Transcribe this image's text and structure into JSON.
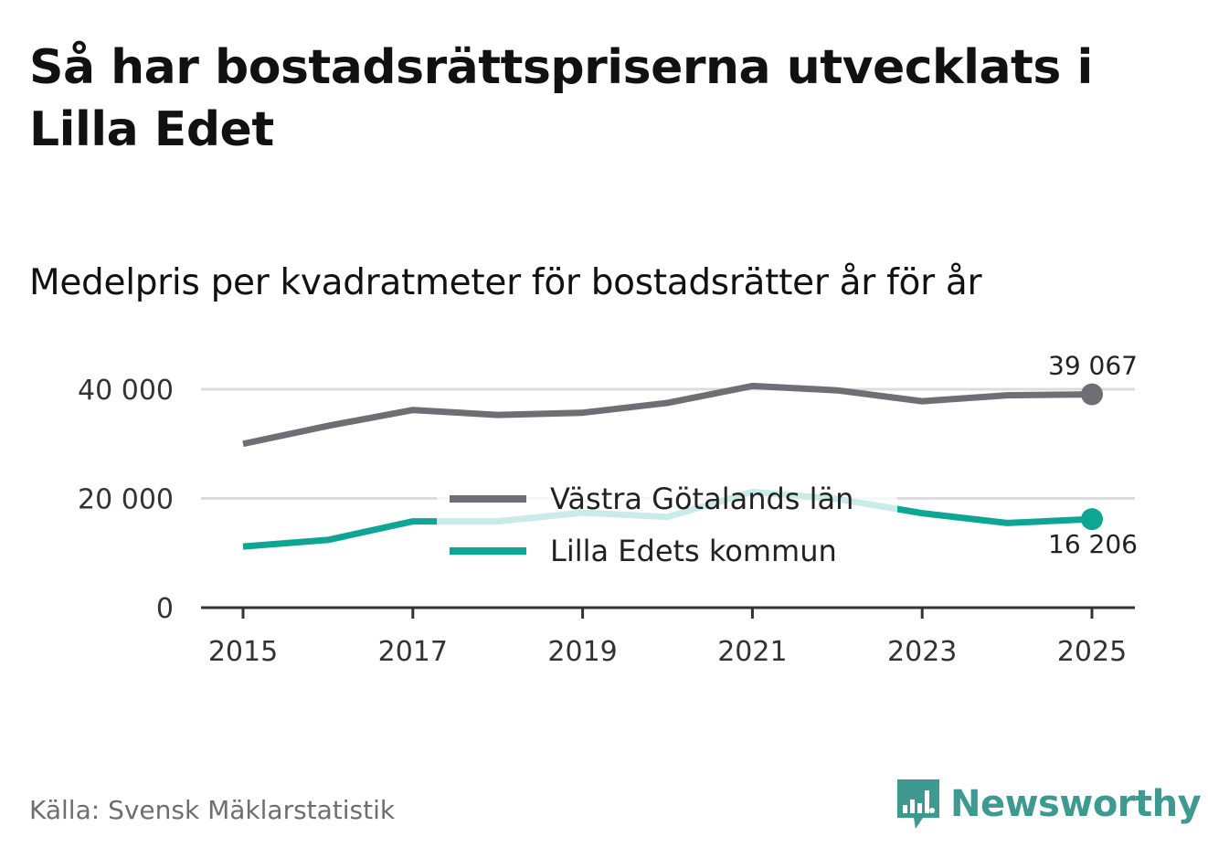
{
  "title": "Så har bostadsrättspriserna utvecklats i Lilla Edet",
  "subtitle": "Medelpris per kvadratmeter för bostadsrätter år för år",
  "source": "Källa: Svensk Mäklarstatistik",
  "brand": {
    "name": "Newsworthy",
    "icon": "newsworthy-logo-icon",
    "color": "#3e9a90"
  },
  "chart_data": {
    "type": "line",
    "title": "Så har bostadsrättspriserna utvecklats i Lilla Edet",
    "subtitle": "Medelpris per kvadratmeter för bostadsrätter år för år",
    "x": [
      2015,
      2016,
      2017,
      2018,
      2019,
      2020,
      2021,
      2022,
      2023,
      2024,
      2025
    ],
    "x_ticks": [
      2015,
      2017,
      2019,
      2021,
      2023,
      2025
    ],
    "x_tick_labels": [
      "2015",
      "2017",
      "2019",
      "2021",
      "2023",
      "2025"
    ],
    "y_ticks": [
      0,
      20000,
      40000
    ],
    "y_tick_labels": [
      "0",
      "20 000",
      "40 000"
    ],
    "ylim": [
      0,
      40000
    ],
    "grid": true,
    "legend_position": "center",
    "series": [
      {
        "name": "Västra Götalands län",
        "color": "#6f6e74",
        "values": [
          30000,
          33300,
          36200,
          35300,
          35700,
          37500,
          40600,
          39800,
          37800,
          38900,
          39067
        ],
        "end_label": "39 067",
        "end_label_position": "above"
      },
      {
        "name": "Lilla Edets kommun",
        "color": "#0fa595",
        "values": [
          11200,
          12400,
          15800,
          15800,
          17400,
          16600,
          21200,
          19900,
          17300,
          15500,
          16206
        ],
        "end_label": "16 206",
        "end_label_position": "below"
      }
    ]
  }
}
